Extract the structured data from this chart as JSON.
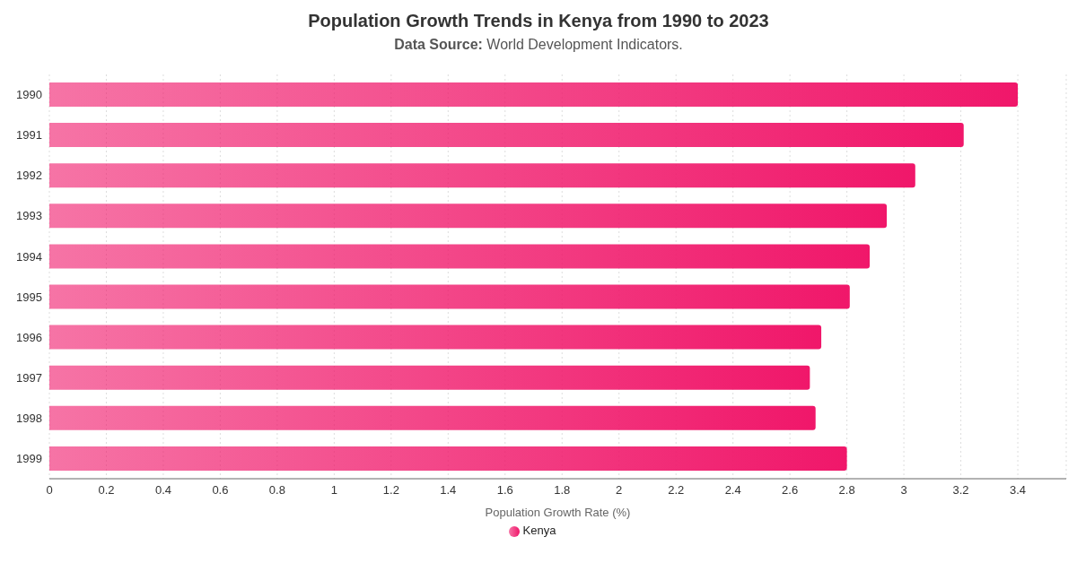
{
  "chart_data": {
    "type": "bar",
    "orientation": "horizontal",
    "title": "Population Growth Trends in Kenya from 1990 to 2023",
    "subtitle": "Data Source: World Development Indicators.",
    "xlabel": "Population Growth Rate (%)",
    "categories": [
      "1990",
      "1991",
      "1992",
      "1993",
      "1994",
      "1995",
      "1996",
      "1997",
      "1998",
      "1999"
    ],
    "series": [
      {
        "name": "Kenya",
        "color": "#f0176a",
        "values": [
          3.4,
          3.21,
          3.04,
          2.94,
          2.88,
          2.81,
          2.71,
          2.67,
          2.69,
          2.8
        ]
      }
    ],
    "xlim": [
      0,
      3.57
    ],
    "xticks": [
      0,
      0.2,
      0.4,
      0.6,
      0.8,
      1,
      1.2,
      1.4,
      1.6,
      1.8,
      2,
      2.2,
      2.4,
      2.6,
      2.8,
      3,
      3.2,
      3.4
    ],
    "grid": "x",
    "legend": "bottom",
    "marker": "circle"
  }
}
